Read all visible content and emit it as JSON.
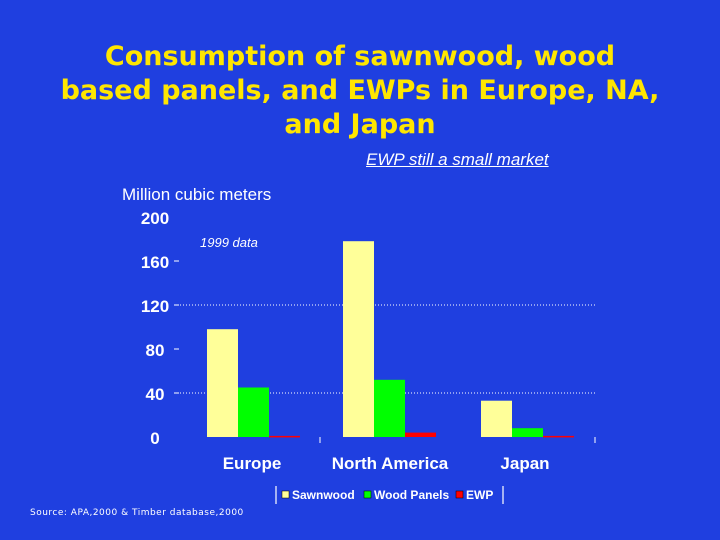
{
  "slide": {
    "title": "Consumption of sawnwood, wood based panels, and EWPs in Europe, NA, and Japan",
    "subtitle": "EWP still a small market",
    "source": "Source: APA,2000 & Timber database,2000"
  },
  "chart_data": {
    "type": "bar",
    "title": "",
    "ylabel": "Million cubic meters",
    "xlabel": "",
    "annotation": "1999 data",
    "categories": [
      "Europe",
      "North America",
      "Japan"
    ],
    "series": [
      {
        "name": "Sawnwood",
        "color": "#ffff99",
        "values": [
          98,
          178,
          33
        ]
      },
      {
        "name": "Wood Panels",
        "color": "#00ff00",
        "values": [
          45,
          52,
          8
        ]
      },
      {
        "name": "EWP",
        "color": "#ff0000",
        "values": [
          1,
          4,
          1
        ]
      }
    ],
    "ylim": [
      0,
      200
    ],
    "yticks": [
      0,
      40,
      80,
      120,
      160,
      200
    ],
    "grid": "dotted at 40 and 120",
    "legend": "bottom"
  }
}
